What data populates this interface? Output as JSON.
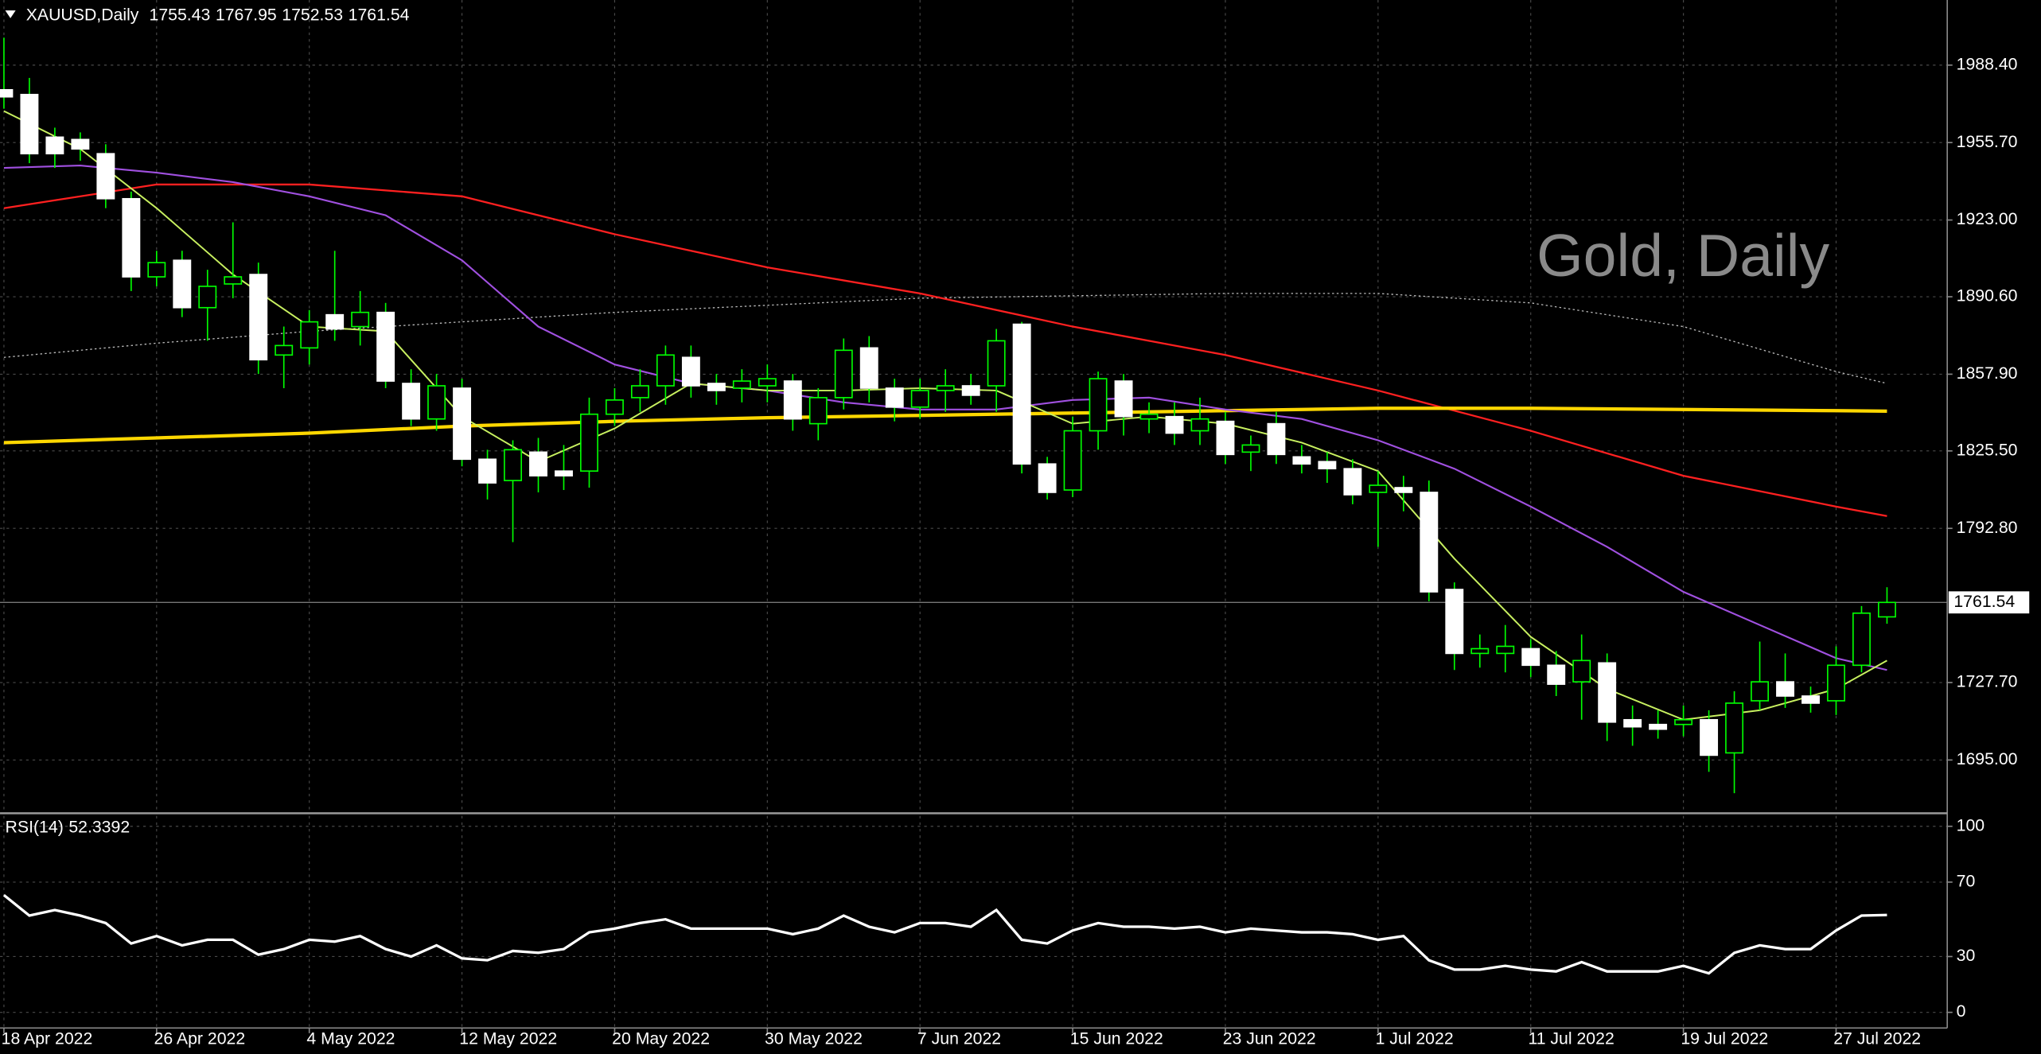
{
  "chart_data": {
    "type": "candlestick",
    "title": "XAUUSD,Daily",
    "watermark": "Gold, Daily",
    "categories": [
      "18 Apr 2022",
      null,
      null,
      null,
      null,
      null,
      "26 Apr 2022",
      null,
      null,
      null,
      null,
      null,
      "4 May 2022",
      null,
      null,
      null,
      null,
      null,
      "12 May 2022",
      null,
      null,
      null,
      null,
      null,
      "20 May 2022",
      null,
      null,
      null,
      null,
      null,
      "30 May 2022",
      null,
      null,
      null,
      null,
      null,
      "7 Jun 2022",
      null,
      null,
      null,
      null,
      null,
      "15 Jun 2022",
      null,
      null,
      null,
      null,
      null,
      "23 Jun 2022",
      null,
      null,
      null,
      null,
      null,
      "1 Jul 2022",
      null,
      null,
      null,
      null,
      null,
      "11 Jul 2022",
      null,
      null,
      null,
      null,
      null,
      "19 Jul 2022",
      null,
      null,
      null,
      null,
      null,
      "27 Jul 2022",
      null,
      null
    ],
    "open": [
      1978,
      1976,
      1958,
      1957,
      1951,
      1932,
      1899,
      1906,
      1886,
      1896,
      1900,
      1866,
      1869,
      1883,
      1878,
      1884,
      1854,
      1839,
      1852,
      1822,
      1813,
      1825,
      1817,
      1817,
      1841,
      1848,
      1853,
      1865,
      1854,
      1852,
      1853,
      1855,
      1837,
      1848,
      1869,
      1852,
      1844,
      1851,
      1853,
      1853,
      1879,
      1820,
      1809,
      1834,
      1855,
      1839,
      1840,
      1834,
      1838,
      1825,
      1837,
      1823,
      1821,
      1818,
      1808,
      1810,
      1808,
      1767,
      1740,
      1740,
      1742,
      1735,
      1728,
      1736,
      1712,
      1710,
      1710,
      1712,
      1698,
      1720,
      1728,
      1722,
      1720,
      1735,
      1755.43
    ],
    "high": [
      2000,
      1983,
      1962,
      1960,
      1955,
      1935,
      1910,
      1910,
      1902,
      1922,
      1905,
      1878,
      1885,
      1910,
      1893,
      1888,
      1860,
      1858,
      1856,
      1826,
      1830,
      1831,
      1828,
      1848,
      1852,
      1860,
      1870,
      1870,
      1858,
      1860,
      1862,
      1858,
      1852,
      1873,
      1874,
      1856,
      1856,
      1860,
      1858,
      1877,
      1880,
      1823,
      1840,
      1859,
      1858,
      1846,
      1846,
      1848,
      1842,
      1832,
      1842,
      1828,
      1825,
      1822,
      1817,
      1815,
      1813,
      1770,
      1748,
      1752,
      1746,
      1741,
      1748,
      1740,
      1718,
      1716,
      1718,
      1716,
      1724,
      1745,
      1740,
      1726,
      1743,
      1760,
      1767.95
    ],
    "low": [
      1970,
      1947,
      1945,
      1948,
      1928,
      1893,
      1895,
      1882,
      1872,
      1890,
      1858,
      1852,
      1862,
      1872,
      1870,
      1852,
      1836,
      1834,
      1819,
      1805,
      1787,
      1808,
      1809,
      1810,
      1836,
      1842,
      1845,
      1848,
      1845,
      1846,
      1846,
      1834,
      1830,
      1843,
      1846,
      1838,
      1839,
      1842,
      1845,
      1842,
      1816,
      1805,
      1806,
      1826,
      1832,
      1833,
      1828,
      1828,
      1820,
      1817,
      1820,
      1816,
      1812,
      1803,
      1785,
      1800,
      1762,
      1733,
      1734,
      1732,
      1730,
      1722,
      1712,
      1703,
      1701,
      1704,
      1705,
      1690,
      1681,
      1716,
      1717,
      1715,
      1714,
      1732,
      1752.53
    ],
    "close": [
      1975,
      1951,
      1951,
      1953,
      1932,
      1899,
      1905,
      1886,
      1895,
      1899,
      1864,
      1870,
      1880,
      1877,
      1884,
      1855,
      1839,
      1853,
      1822,
      1812,
      1826,
      1815,
      1815,
      1841,
      1847,
      1853,
      1866,
      1853,
      1851,
      1855,
      1856,
      1839,
      1848,
      1868,
      1852,
      1844,
      1851,
      1853,
      1849,
      1872,
      1820,
      1808,
      1834,
      1856,
      1840,
      1841,
      1833,
      1839,
      1824,
      1828,
      1824,
      1820,
      1818,
      1807,
      1811,
      1808,
      1766,
      1740,
      1742,
      1743,
      1735,
      1727,
      1737,
      1711,
      1709,
      1708,
      1712,
      1697,
      1719,
      1728,
      1722,
      1719,
      1735,
      1757,
      1761.54
    ],
    "up_color": "#00ff00",
    "down_color": "#ffffff",
    "ylim": [
      1673.6,
      2014.8
    ],
    "yticks": [
      {
        "value": 1988.4,
        "label": "1988.40"
      },
      {
        "value": 1955.7,
        "label": "1955.70"
      },
      {
        "value": 1923,
        "label": "1923.00"
      },
      {
        "value": 1890.6,
        "label": "1890.60"
      },
      {
        "value": 1857.9,
        "label": "1857.90"
      },
      {
        "value": 1825.5,
        "label": "1825.50"
      },
      {
        "value": 1792.8,
        "label": "1792.80"
      },
      {
        "value": 1727.7,
        "label": "1727.70"
      },
      {
        "value": 1695,
        "label": "1695.00"
      }
    ],
    "grid": true,
    "indicators": [
      {
        "color": "#bbbbbb",
        "width": 0.8,
        "dashed": true,
        "x": [
          0,
          6,
          12,
          18,
          24,
          30,
          36,
          42,
          48,
          54,
          60,
          66,
          72,
          74
        ],
        "values": [
          1865,
          1871,
          1876,
          1880,
          1884,
          1887,
          1890,
          1891,
          1892,
          1892,
          1888,
          1878,
          1859,
          1854
        ]
      },
      {
        "color": "#ff2020",
        "width": 1.4,
        "dashed": false,
        "x": [
          0,
          6,
          12,
          18,
          24,
          30,
          36,
          42,
          48,
          54,
          60,
          66,
          72,
          74
        ],
        "values": [
          1928,
          1938,
          1938,
          1933,
          1917,
          1903,
          1892,
          1878,
          1866,
          1851,
          1834,
          1815,
          1802,
          1798
        ]
      },
      {
        "color": "#ffd700",
        "width": 2.6,
        "dashed": false,
        "x": [
          0,
          6,
          12,
          18,
          24,
          30,
          36,
          42,
          48,
          54,
          60,
          66,
          72,
          74
        ],
        "values": [
          1829,
          1831,
          1833,
          1836,
          1838,
          1839.5,
          1840.5,
          1841.5,
          1842.5,
          1843.5,
          1843.5,
          1843,
          1842.5,
          1842.3
        ]
      },
      {
        "color": "#a050e0",
        "width": 1.3,
        "dashed": false,
        "x": [
          0,
          3,
          6,
          9,
          12,
          15,
          18,
          21,
          24,
          27,
          30,
          33,
          36,
          39,
          42,
          45,
          48,
          51,
          54,
          57,
          60,
          63,
          66,
          69,
          72,
          74
        ],
        "values": [
          1945,
          1946,
          1943,
          1939,
          1933,
          1925,
          1906,
          1878,
          1862,
          1854,
          1851,
          1846,
          1843,
          1843,
          1847,
          1848,
          1843,
          1839,
          1830,
          1818,
          1802,
          1785,
          1766,
          1752,
          1738,
          1733
        ]
      },
      {
        "color": "#c8f060",
        "width": 1.2,
        "dashed": false,
        "x": [
          0,
          3,
          6,
          9,
          12,
          15,
          18,
          21,
          24,
          27,
          30,
          33,
          36,
          39,
          42,
          45,
          48,
          51,
          54,
          57,
          60,
          63,
          66,
          69,
          72,
          74
        ],
        "values": [
          1969,
          1953,
          1928,
          1900,
          1878,
          1876,
          1840,
          1821,
          1835,
          1854,
          1851,
          1851,
          1852,
          1851,
          1837,
          1840,
          1837,
          1829,
          1817,
          1780,
          1747,
          1725,
          1712,
          1716,
          1725,
          1737
        ]
      }
    ],
    "rsi": {
      "label": "RSI(14)",
      "color": "#ffffff",
      "ylim": [
        -8.4,
        105.6
      ],
      "yticks": [
        100,
        70,
        30,
        0
      ],
      "values": [
        63,
        52,
        55,
        52,
        48,
        37,
        41,
        36,
        39,
        39,
        31,
        34,
        39,
        38,
        41,
        34,
        30,
        36,
        29,
        28,
        33,
        32,
        34,
        43,
        45,
        48,
        50,
        45,
        45,
        45,
        45,
        42,
        45,
        52,
        46,
        43,
        48,
        48,
        46,
        55,
        39,
        37,
        44,
        48,
        46,
        46,
        45,
        46,
        43,
        45,
        44,
        43,
        43,
        42,
        39,
        41,
        28,
        23,
        23,
        25,
        23,
        22,
        27,
        22,
        22,
        22,
        25,
        21,
        32,
        36,
        34,
        34,
        44,
        52,
        52.3392
      ]
    }
  }
}
